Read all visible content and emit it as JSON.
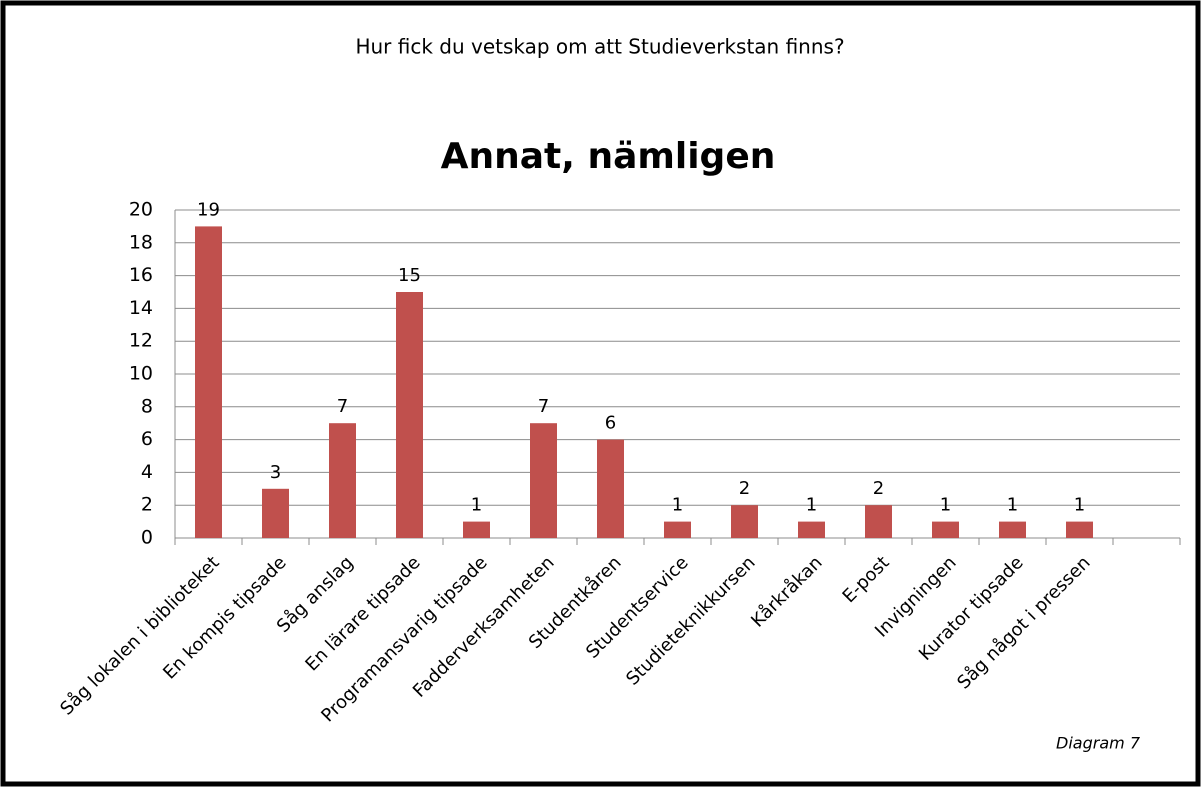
{
  "chart_data": {
    "type": "bar",
    "header": "Hur fick du vetskap om att Studieverkstan finns?",
    "title": "Annat, nämligen",
    "note": "Diagram 7",
    "categories": [
      "Såg lokalen i biblioteket",
      "En kompis tipsade",
      "Såg anslag",
      "En lärare tipsade",
      "Programansvarig tipsade",
      "Fadderverksamheten",
      "Studentkåren",
      "Studentservice",
      "Studieteknikkursen",
      "Kårkråkan",
      "E-post",
      "Invigningen",
      "Kurator tipsade",
      "Såg något i pressen",
      null
    ],
    "values": [
      19,
      3,
      7,
      15,
      1,
      7,
      6,
      1,
      2,
      1,
      2,
      1,
      1,
      1,
      null
    ],
    "color": "#c0504d",
    "ylim": [
      0,
      20
    ],
    "yticks": [
      0,
      2,
      4,
      6,
      8,
      10,
      12,
      14,
      16,
      18,
      20
    ],
    "grid": true
  }
}
